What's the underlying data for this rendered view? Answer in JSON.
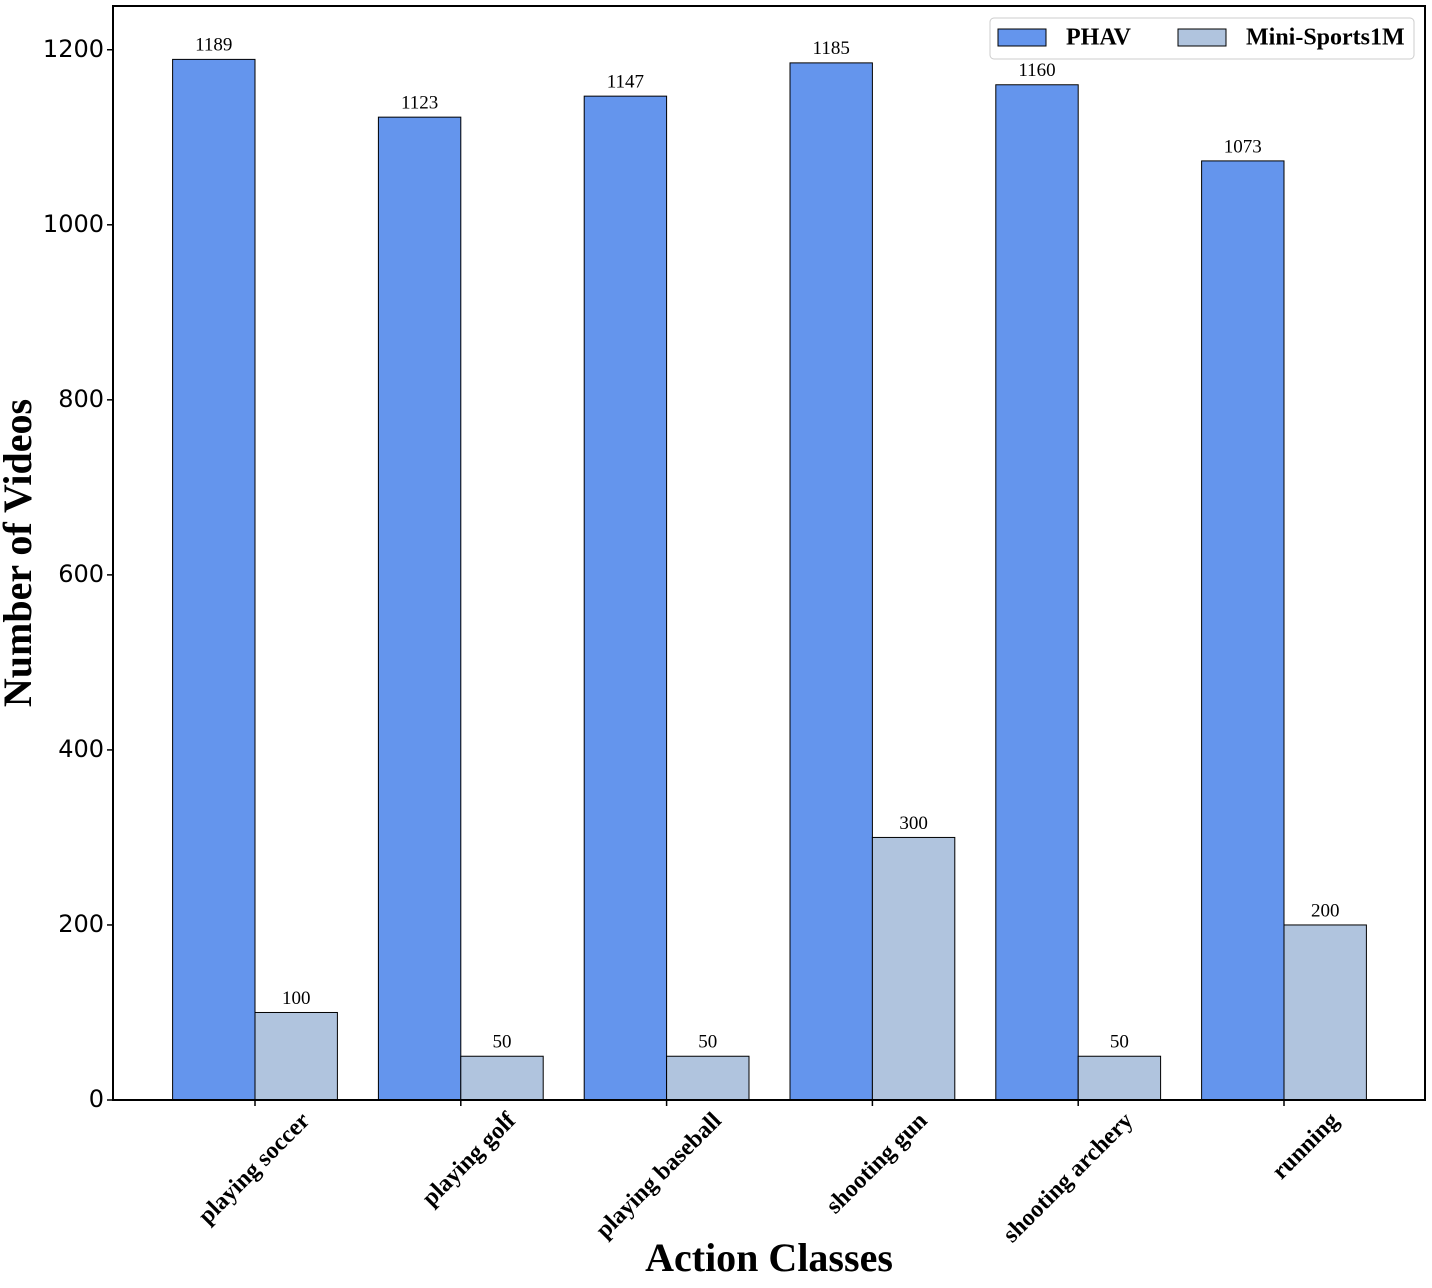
{
  "chart_data": {
    "type": "bar",
    "x_label": "Action Classes",
    "y_label": "Number of Videos",
    "categories": [
      "playing soccer",
      "playing golf",
      "playing baseball",
      "shooting gun",
      "shooting archery",
      "running"
    ],
    "series": [
      {
        "name": "PHAV",
        "color": "#6495ed",
        "values": [
          1189,
          1123,
          1147,
          1185,
          1160,
          1073
        ]
      },
      {
        "name": "Mini-Sports1M",
        "color": "#b0c4de",
        "values": [
          100,
          50,
          50,
          300,
          50,
          200
        ]
      }
    ],
    "ylim": [
      0,
      1250
    ],
    "yticks": [
      0,
      200,
      400,
      600,
      800,
      1000,
      1200
    ],
    "legend": "upper right"
  }
}
